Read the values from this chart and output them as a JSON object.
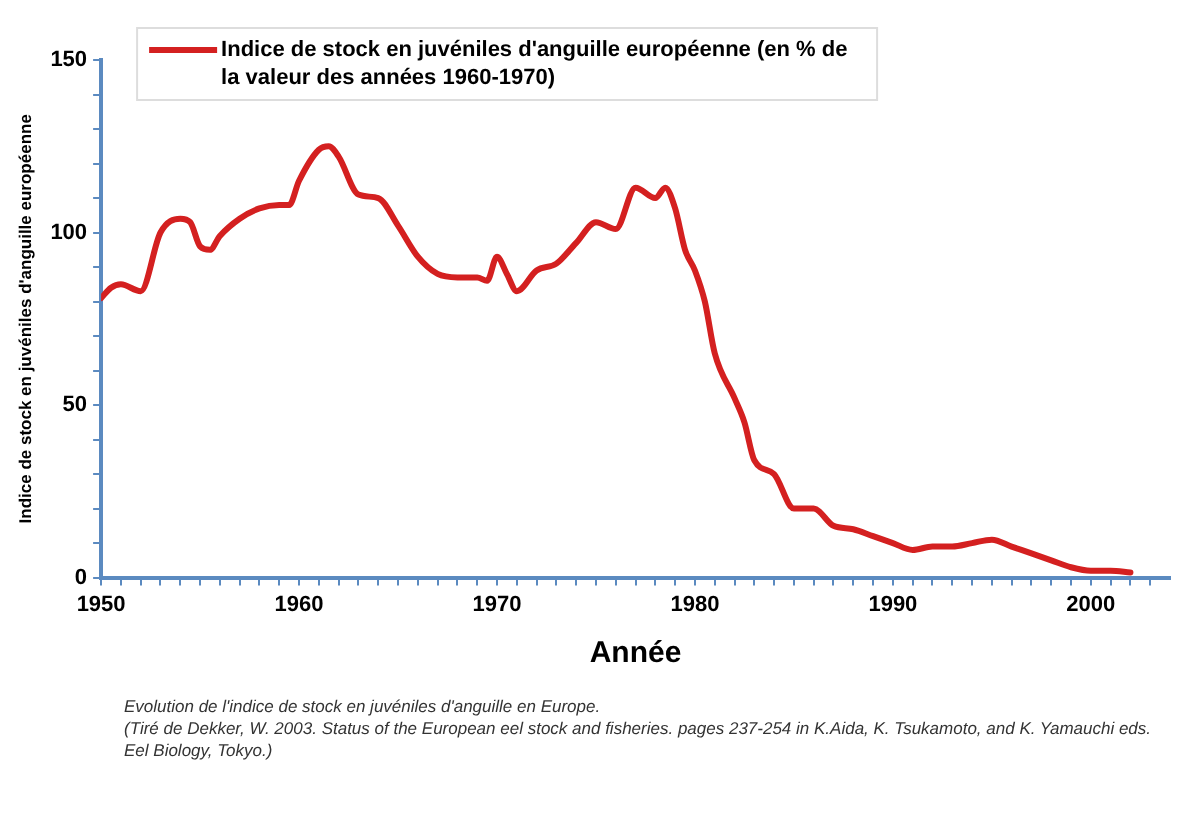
{
  "chart_data": {
    "type": "line",
    "xlabel": "Année",
    "ylabel": "Indice de stock en juvéniles d'anguille européenne",
    "x": [
      1950,
      1950.5,
      1951,
      1952,
      1953,
      1954,
      1954.5,
      1955,
      1955.5,
      1956,
      1957,
      1958,
      1959,
      1959.5,
      1960,
      1961,
      1961.5,
      1962,
      1963,
      1964,
      1965,
      1966,
      1967,
      1968,
      1969,
      1969.5,
      1970,
      1970.5,
      1971,
      1972,
      1973,
      1974,
      1975,
      1976,
      1977,
      1978,
      1978.5,
      1979,
      1979.5,
      1980,
      1980.5,
      1981,
      1982,
      1982.5,
      1983,
      1984,
      1985,
      1986,
      1987,
      1988,
      1989,
      1990,
      1991,
      1992,
      1993,
      1994,
      1995,
      1996,
      1997,
      1998,
      1999,
      2000,
      2001,
      2002
    ],
    "series": [
      {
        "name": "Indice de stock en juvéniles d'anguille européenne (en % de la valeur des années 1960-1970)",
        "color": "#d42020",
        "values": [
          81,
          84,
          85,
          83,
          100,
          104,
          103,
          96,
          95,
          99,
          104,
          107,
          108,
          108,
          115,
          124,
          125,
          122,
          111,
          110,
          102,
          93,
          88,
          87,
          87,
          86,
          93,
          88,
          83,
          89,
          91,
          97,
          103,
          101,
          113,
          110,
          113,
          107,
          95,
          89,
          80,
          65,
          52,
          45,
          34,
          30,
          20,
          20,
          15,
          14,
          12,
          10,
          8,
          9,
          9,
          10,
          11,
          9,
          7,
          5,
          3,
          2,
          2,
          1.5
        ]
      }
    ],
    "xlim": [
      1950,
      2004
    ],
    "xticks": [
      1950,
      {
        "value": 1951,
        "label": null
      },
      {
        "value": 1952,
        "label": null
      },
      {
        "value": 1953,
        "label": null
      },
      {
        "value": 1954,
        "label": null
      },
      {
        "value": 1955,
        "label": null
      },
      {
        "value": 1956,
        "label": null
      },
      {
        "value": 1957,
        "label": null
      },
      {
        "value": 1958,
        "label": null
      },
      {
        "value": 1959,
        "label": null
      },
      1960,
      {
        "value": 1961,
        "label": null
      },
      {
        "value": 1962,
        "label": null
      },
      {
        "value": 1963,
        "label": null
      },
      {
        "value": 1964,
        "label": null
      },
      {
        "value": 1965,
        "label": null
      },
      {
        "value": 1966,
        "label": null
      },
      {
        "value": 1967,
        "label": null
      },
      {
        "value": 1968,
        "label": null
      },
      {
        "value": 1969,
        "label": null
      },
      1970,
      {
        "value": 1971,
        "label": null
      },
      {
        "value": 1972,
        "label": null
      },
      {
        "value": 1973,
        "label": null
      },
      {
        "value": 1974,
        "label": null
      },
      {
        "value": 1975,
        "label": null
      },
      {
        "value": 1976,
        "label": null
      },
      {
        "value": 1977,
        "label": null
      },
      {
        "value": 1978,
        "label": null
      },
      {
        "value": 1979,
        "label": null
      },
      1980,
      {
        "value": 1981,
        "label": null
      },
      {
        "value": 1982,
        "label": null
      },
      {
        "value": 1983,
        "label": null
      },
      {
        "value": 1984,
        "label": null
      },
      {
        "value": 1985,
        "label": null
      },
      {
        "value": 1986,
        "label": null
      },
      {
        "value": 1987,
        "label": null
      },
      {
        "value": 1988,
        "label": null
      },
      {
        "value": 1989,
        "label": null
      },
      1990,
      {
        "value": 1991,
        "label": null
      },
      {
        "value": 1992,
        "label": null
      },
      {
        "value": 1993,
        "label": null
      },
      {
        "value": 1994,
        "label": null
      },
      {
        "value": 1995,
        "label": null
      },
      {
        "value": 1996,
        "label": null
      },
      {
        "value": 1997,
        "label": null
      },
      {
        "value": 1998,
        "label": null
      },
      {
        "value": 1999,
        "label": null
      },
      2000,
      {
        "value": 2001,
        "label": null
      },
      {
        "value": 2002,
        "label": null
      },
      {
        "value": 2003,
        "label": null
      }
    ],
    "ylim": [
      0,
      150
    ],
    "yticks": [
      0,
      {
        "value": 10,
        "label": null
      },
      {
        "value": 20,
        "label": null
      },
      {
        "value": 30,
        "label": null
      },
      {
        "value": 40,
        "label": null
      },
      50,
      {
        "value": 60,
        "label": null
      },
      {
        "value": 70,
        "label": null
      },
      {
        "value": 80,
        "label": null
      },
      {
        "value": 90,
        "label": null
      },
      100,
      {
        "value": 110,
        "label": null
      },
      {
        "value": 120,
        "label": null
      },
      {
        "value": 130,
        "label": null
      },
      {
        "value": 140,
        "label": null
      },
      150
    ],
    "grid": false,
    "legend": "top",
    "marker": "none",
    "line_style": "solid",
    "annotations": [
      "Evolution de l'indice de stock en juvéniles d'anguille en Europe.",
      "(Tiré de Dekker, W. 2003. Status of the European eel stock and fisheries. pages 237-254 in K.Aida, K. Tsukamoto, and K. Yamauchi eds. Eel Biology, Tokyo.)"
    ]
  }
}
